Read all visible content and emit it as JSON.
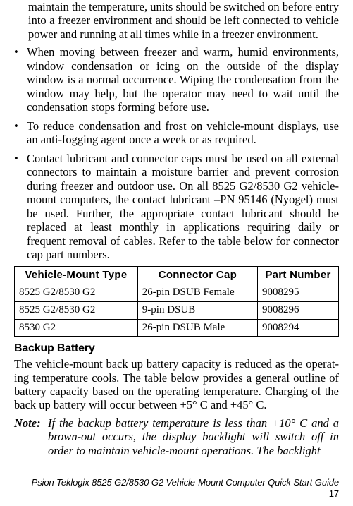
{
  "partial_top": "maintain the temperature, units should be switched on before entry into a freezer environment and should be left connected to vehicle power and running at all times while in a freezer environment.",
  "bullets": [
    "When moving between freezer and warm, humid environ­ments, window condensation or icing on the outside of the display window is a normal occurrence. Wiping the conden­sation from the window may help, but the operator may need to wait until the condensation stops forming before use.",
    "To reduce condensation and frost on vehicle-mount displays, use an anti-fogging agent once a week or as required.",
    "Contact lubricant and connector caps must be used on all external connectors to maintain a moisture barrier and pre­vent corrosion during freezer and outdoor use. On all 8525 G2/8530 G2 vehicle-mount computers, the contact lubricant –PN 95146 (Nyogel) must be used. Further, the appropriate contact lubricant should be replaced at least monthly in applications requiring daily or frequent removal of cables. Refer to the table below for connector cap part numbers."
  ],
  "table": {
    "headers": [
      "Vehicle-Mount Type",
      "Connector Cap",
      "Part Number"
    ],
    "rows": [
      [
        "8525 G2/8530 G2",
        "26-pin DSUB Female",
        "9008295"
      ],
      [
        "8525 G2/8530 G2",
        "9-pin DSUB",
        "9008296"
      ],
      [
        "8530 G2",
        "26-pin DSUB Male",
        "9008294"
      ]
    ]
  },
  "section_heading": "Backup Battery",
  "section_body": "The vehicle-mount back up battery capacity is reduced as the operat­ing temperature cools. The table below provides a general outline of battery capacity based on the operating temperature. Charging of the back up battery will occur between +5° C and +45° C.",
  "note_label": "Note:",
  "note_body": "If the backup battery temperature is less than +10° C and a brown-out occurs, the display backlight will switch off in order to maintain vehicle-mount operations. The backlight",
  "footer_text": "Psion Teklogix 8525 G2/8530 G2 Vehicle-Mount Computer Quick Start Guide",
  "footer_page": "17"
}
